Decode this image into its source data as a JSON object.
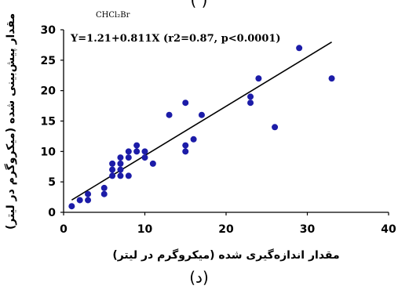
{
  "figure": {
    "top_caption": "( )",
    "caption": "(د)"
  },
  "chart_data": {
    "type": "scatter",
    "title": "CHCl₂Br",
    "equation": "Y=1.21+0.811X (r2=0.87, p<0.0001)",
    "xlabel": "مقدار اندازه‌گیری شده (میکروگرم در لیتر)",
    "ylabel": "مقدار پیش‌بینی شده (میکروگرم در لیتر)",
    "xlim": [
      0,
      40
    ],
    "ylim": [
      0,
      30
    ],
    "xticks": [
      0,
      10,
      20,
      30,
      40
    ],
    "yticks": [
      0,
      5,
      10,
      15,
      20,
      25,
      30
    ],
    "grid": false,
    "point_color": "#1c1ca8",
    "line_color": "#000000",
    "points": [
      {
        "x": 1,
        "y": 1
      },
      {
        "x": 2,
        "y": 2
      },
      {
        "x": 3,
        "y": 2
      },
      {
        "x": 3,
        "y": 3
      },
      {
        "x": 5,
        "y": 3
      },
      {
        "x": 5,
        "y": 4
      },
      {
        "x": 6,
        "y": 6
      },
      {
        "x": 6,
        "y": 7
      },
      {
        "x": 6,
        "y": 8
      },
      {
        "x": 7,
        "y": 6
      },
      {
        "x": 7,
        "y": 7
      },
      {
        "x": 7,
        "y": 8
      },
      {
        "x": 7,
        "y": 9
      },
      {
        "x": 8,
        "y": 6
      },
      {
        "x": 8,
        "y": 9
      },
      {
        "x": 8,
        "y": 10
      },
      {
        "x": 9,
        "y": 10
      },
      {
        "x": 9,
        "y": 11
      },
      {
        "x": 10,
        "y": 9
      },
      {
        "x": 10,
        "y": 10
      },
      {
        "x": 11,
        "y": 8
      },
      {
        "x": 13,
        "y": 16
      },
      {
        "x": 15,
        "y": 10
      },
      {
        "x": 15,
        "y": 11
      },
      {
        "x": 15,
        "y": 18
      },
      {
        "x": 16,
        "y": 12
      },
      {
        "x": 17,
        "y": 16
      },
      {
        "x": 23,
        "y": 18
      },
      {
        "x": 23,
        "y": 19
      },
      {
        "x": 24,
        "y": 22
      },
      {
        "x": 26,
        "y": 14
      },
      {
        "x": 29,
        "y": 27
      },
      {
        "x": 33,
        "y": 22
      }
    ],
    "regression": {
      "intercept": 1.21,
      "slope": 0.811,
      "x_range": [
        1,
        33
      ]
    }
  }
}
